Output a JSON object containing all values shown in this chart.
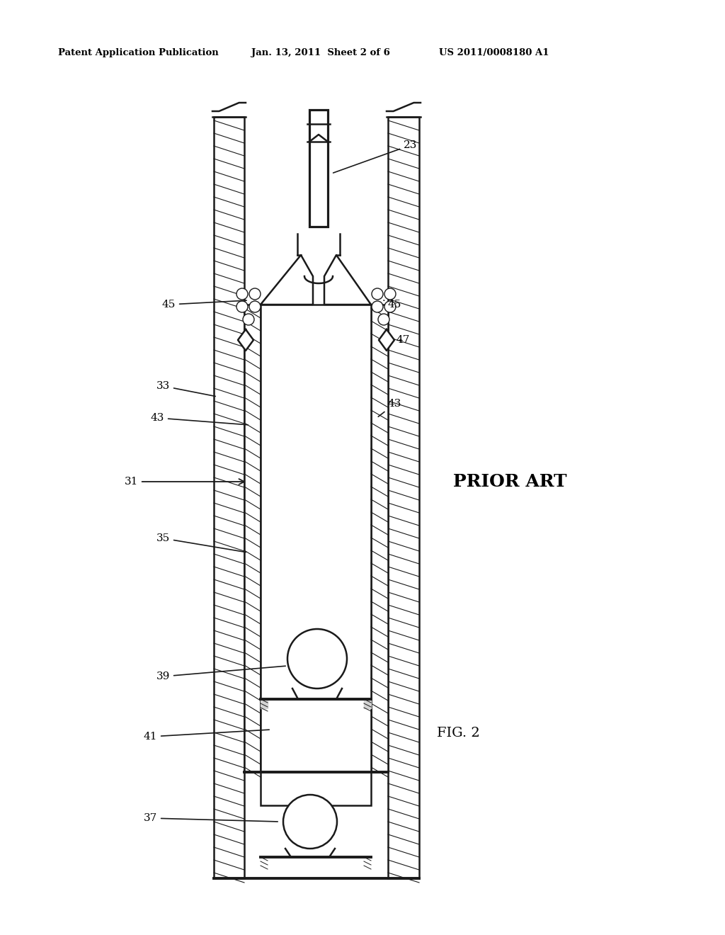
{
  "header_left": "Patent Application Publication",
  "header_mid": "Jan. 13, 2011  Sheet 2 of 6",
  "header_right": "US 2011/0008180 A1",
  "fig_label": "FIG. 2",
  "prior_art_label": "PRIOR ART",
  "bg_color": "#ffffff",
  "line_color": "#1a1a1a"
}
